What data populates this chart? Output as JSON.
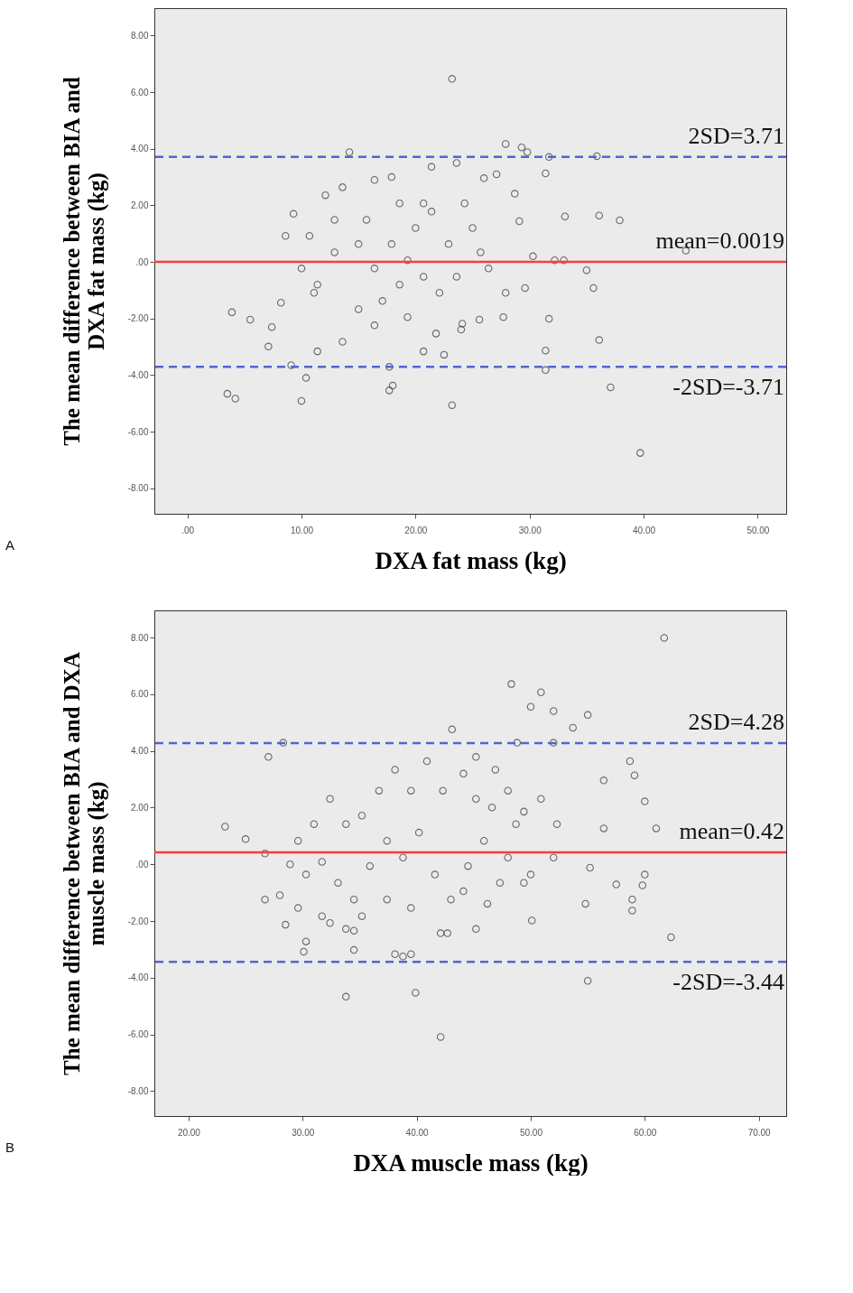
{
  "chart_data": [
    {
      "type": "scatter",
      "xlabel": "DXA fat mass (kg)",
      "ylabel": "The mean difference between BIA and\nDXA fat mass (kg)",
      "marker": "circle",
      "xlim": [
        -2.9,
        52.5
      ],
      "ylim": [
        -8.9,
        8.97
      ],
      "xticks": [
        {
          "value": 0,
          "label": ".00"
        },
        {
          "value": 10,
          "label": "10.00"
        },
        {
          "value": 20,
          "label": "20.00"
        },
        {
          "value": 30,
          "label": "30.00"
        },
        {
          "value": 40,
          "label": "40.00"
        },
        {
          "value": 50,
          "label": "50.00"
        }
      ],
      "yticks": [
        {
          "value": -8,
          "label": "-8.00"
        },
        {
          "value": -6,
          "label": "-6.00"
        },
        {
          "value": -4,
          "label": "-4.00"
        },
        {
          "value": -2,
          "label": "-2.00"
        },
        {
          "value": 0,
          "label": ".00"
        },
        {
          "value": 2,
          "label": "2.00"
        },
        {
          "value": 4,
          "label": "4.00"
        },
        {
          "value": 6,
          "label": "6.00"
        },
        {
          "value": 8,
          "label": "8.00"
        }
      ],
      "ref_lines": [
        {
          "axis": "y",
          "value": 3.71,
          "label": "2SD=3.71",
          "color": "#5264d6",
          "line_style": "dashed"
        },
        {
          "axis": "y",
          "value": 0.0019,
          "label": "mean=0.0019",
          "color": "#ff3b3b",
          "line_style": "solid"
        },
        {
          "axis": "y",
          "value": -3.71,
          "label": "-2SD=-3.71",
          "color": "#5264d6",
          "line_style": "dashed"
        }
      ],
      "annotations": [
        "A"
      ],
      "series": [
        {
          "color": "#333333",
          "x": [
            23.2,
            39.7,
            43.7,
            3.5,
            4.2,
            3.9,
            5.5,
            10.0,
            23.2,
            37.1,
            36.1,
            35.9,
            37.9,
            36.1,
            35.6,
            35.0,
            33.0,
            32.2,
            33.1,
            31.4,
            31.4,
            31.7,
            31.4,
            31.7,
            27.9,
            29.3,
            29.8,
            14.2,
            9.3,
            9.1,
            7.1,
            7.4,
            8.2,
            10.4,
            11.4,
            17.7,
            18.0,
            17.7,
            20.7,
            22.5,
            24.0,
            24.1,
            25.6,
            27.7,
            29.6,
            30.3,
            29.1,
            28.7,
            27.1,
            26.0,
            23.6,
            21.4,
            17.9,
            16.4,
            13.6,
            12.1,
            10.7,
            8.6,
            10.0,
            11.1,
            12.9,
            15.0,
            16.4,
            18.6,
            20.0,
            21.4,
            22.9,
            25.0,
            26.4,
            27.9,
            17.1,
            19.3,
            15.0,
            13.6,
            22.1,
            20.7,
            18.6,
            24.3,
            15.7,
            17.9,
            19.3,
            20.7,
            23.6,
            25.7,
            12.9,
            11.4,
            16.4,
            21.8
          ],
          "values": [
            6.47,
            -6.75,
            0.4,
            -4.66,
            -4.83,
            -1.78,
            -2.04,
            -4.91,
            -5.06,
            -4.43,
            -2.76,
            3.74,
            1.47,
            1.64,
            -0.92,
            -0.29,
            0.06,
            0.06,
            1.61,
            -3.82,
            -3.13,
            -2.01,
            3.13,
            3.71,
            4.17,
            4.05,
            3.88,
            3.88,
            1.7,
            -3.65,
            -2.99,
            -2.3,
            -1.44,
            -4.1,
            -3.16,
            -4.54,
            -4.37,
            -3.71,
            -3.16,
            -3.28,
            -2.39,
            -2.18,
            -2.04,
            -1.95,
            -0.92,
            0.2,
            1.44,
            2.41,
            3.1,
            2.96,
            3.5,
            3.36,
            3.0,
            2.9,
            2.64,
            2.36,
            0.92,
            0.92,
            -0.23,
            -1.09,
            0.34,
            0.63,
            -0.23,
            -0.8,
            1.2,
            1.78,
            0.63,
            1.2,
            -0.23,
            -1.09,
            -1.38,
            -1.95,
            -1.67,
            -2.82,
            -1.09,
            2.07,
            2.07,
            2.07,
            1.49,
            0.63,
            0.06,
            -0.52,
            -0.52,
            0.34,
            1.49,
            -0.8,
            -2.24,
            -2.53
          ]
        }
      ]
    },
    {
      "type": "scatter",
      "xlabel": "DXA muscle mass (kg)",
      "ylabel": "The mean difference between BIA and DXA\nmuscle mass (kg)",
      "marker": "circle",
      "xlim": [
        17.0,
        72.4
      ],
      "ylim": [
        -8.88,
        8.96
      ],
      "xticks": [
        {
          "value": 20,
          "label": "20.00"
        },
        {
          "value": 30,
          "label": "30.00"
        },
        {
          "value": 40,
          "label": "40.00"
        },
        {
          "value": 50,
          "label": "50.00"
        },
        {
          "value": 60,
          "label": "60.00"
        },
        {
          "value": 70,
          "label": "70.00"
        }
      ],
      "yticks": [
        {
          "value": -8,
          "label": "-8.00"
        },
        {
          "value": -6,
          "label": "-6.00"
        },
        {
          "value": -4,
          "label": "-4.00"
        },
        {
          "value": -2,
          "label": "-2.00"
        },
        {
          "value": 0,
          "label": ".00"
        },
        {
          "value": 2,
          "label": "2.00"
        },
        {
          "value": 4,
          "label": "4.00"
        },
        {
          "value": 6,
          "label": "6.00"
        },
        {
          "value": 8,
          "label": "8.00"
        }
      ],
      "ref_lines": [
        {
          "axis": "y",
          "value": 4.28,
          "label": "2SD=4.28",
          "color": "#5264d6",
          "line_style": "dashed"
        },
        {
          "axis": "y",
          "value": 0.42,
          "label": "mean=0.42",
          "color": "#ff3b3b",
          "line_style": "solid"
        },
        {
          "axis": "y",
          "value": -3.44,
          "label": "-2SD=-3.44",
          "color": "#5264d6",
          "line_style": "dashed"
        }
      ],
      "annotations": [
        "B"
      ],
      "series": [
        {
          "color": "#333333",
          "x": [
            61.7,
            48.3,
            50.9,
            50.0,
            52.0,
            55.0,
            53.7,
            28.3,
            43.1,
            48.8,
            52.0,
            27.0,
            23.2,
            25.0,
            62.3,
            55.0,
            33.8,
            39.9,
            42.1,
            58.7,
            59.1,
            60.0,
            56.4,
            61.0,
            60.0,
            59.8,
            58.9,
            58.9,
            57.5,
            56.4,
            55.2,
            54.8,
            28.0,
            28.5,
            30.3,
            30.1,
            32.4,
            34.5,
            34.5,
            38.1,
            38.8,
            39.5,
            42.1,
            42.7,
            45.2,
            46.2,
            50.1,
            50.0,
            52.0,
            52.3,
            50.9,
            49.4,
            48.0,
            46.9,
            45.2,
            44.1,
            42.3,
            40.9,
            39.5,
            38.1,
            36.7,
            35.2,
            33.8,
            32.4,
            31.0,
            29.6,
            26.7,
            28.9,
            30.3,
            31.7,
            33.1,
            34.5,
            35.9,
            37.4,
            38.8,
            40.2,
            41.6,
            43.0,
            44.5,
            45.9,
            47.3,
            48.7,
            45.2,
            46.6,
            26.7,
            29.6,
            31.7,
            33.8,
            35.2,
            37.4,
            39.5,
            44.1,
            48.0,
            49.4
          ],
          "values": [
            7.99,
            6.36,
            6.07,
            5.56,
            5.41,
            5.27,
            4.82,
            4.29,
            4.76,
            4.29,
            4.29,
            3.79,
            1.33,
            0.89,
            -2.57,
            -4.11,
            -4.67,
            -4.53,
            -6.09,
            3.64,
            3.14,
            2.22,
            2.96,
            1.27,
            -0.36,
            -0.74,
            -1.24,
            -1.63,
            -0.71,
            1.27,
            -0.12,
            -1.39,
            -1.09,
            -2.13,
            -2.72,
            -3.08,
            -2.07,
            -3.02,
            -2.34,
            -3.17,
            -3.25,
            -3.17,
            -2.43,
            -2.43,
            -2.28,
            -1.39,
            -1.98,
            -0.36,
            0.24,
            1.42,
            2.31,
            1.86,
            2.6,
            3.34,
            3.79,
            3.2,
            2.6,
            3.64,
            2.6,
            3.34,
            2.6,
            1.72,
            1.42,
            2.31,
            1.42,
            0.83,
            0.38,
            0.0,
            -0.36,
            0.09,
            -0.65,
            -1.24,
            -0.06,
            0.83,
            0.24,
            1.12,
            -0.36,
            -1.24,
            -0.06,
            0.83,
            -0.65,
            1.42,
            2.31,
            2.01,
            -1.24,
            -1.54,
            -1.83,
            -2.28,
            -1.83,
            -1.24,
            -1.54,
            -0.95,
            0.24,
            -0.65
          ]
        }
      ]
    }
  ]
}
